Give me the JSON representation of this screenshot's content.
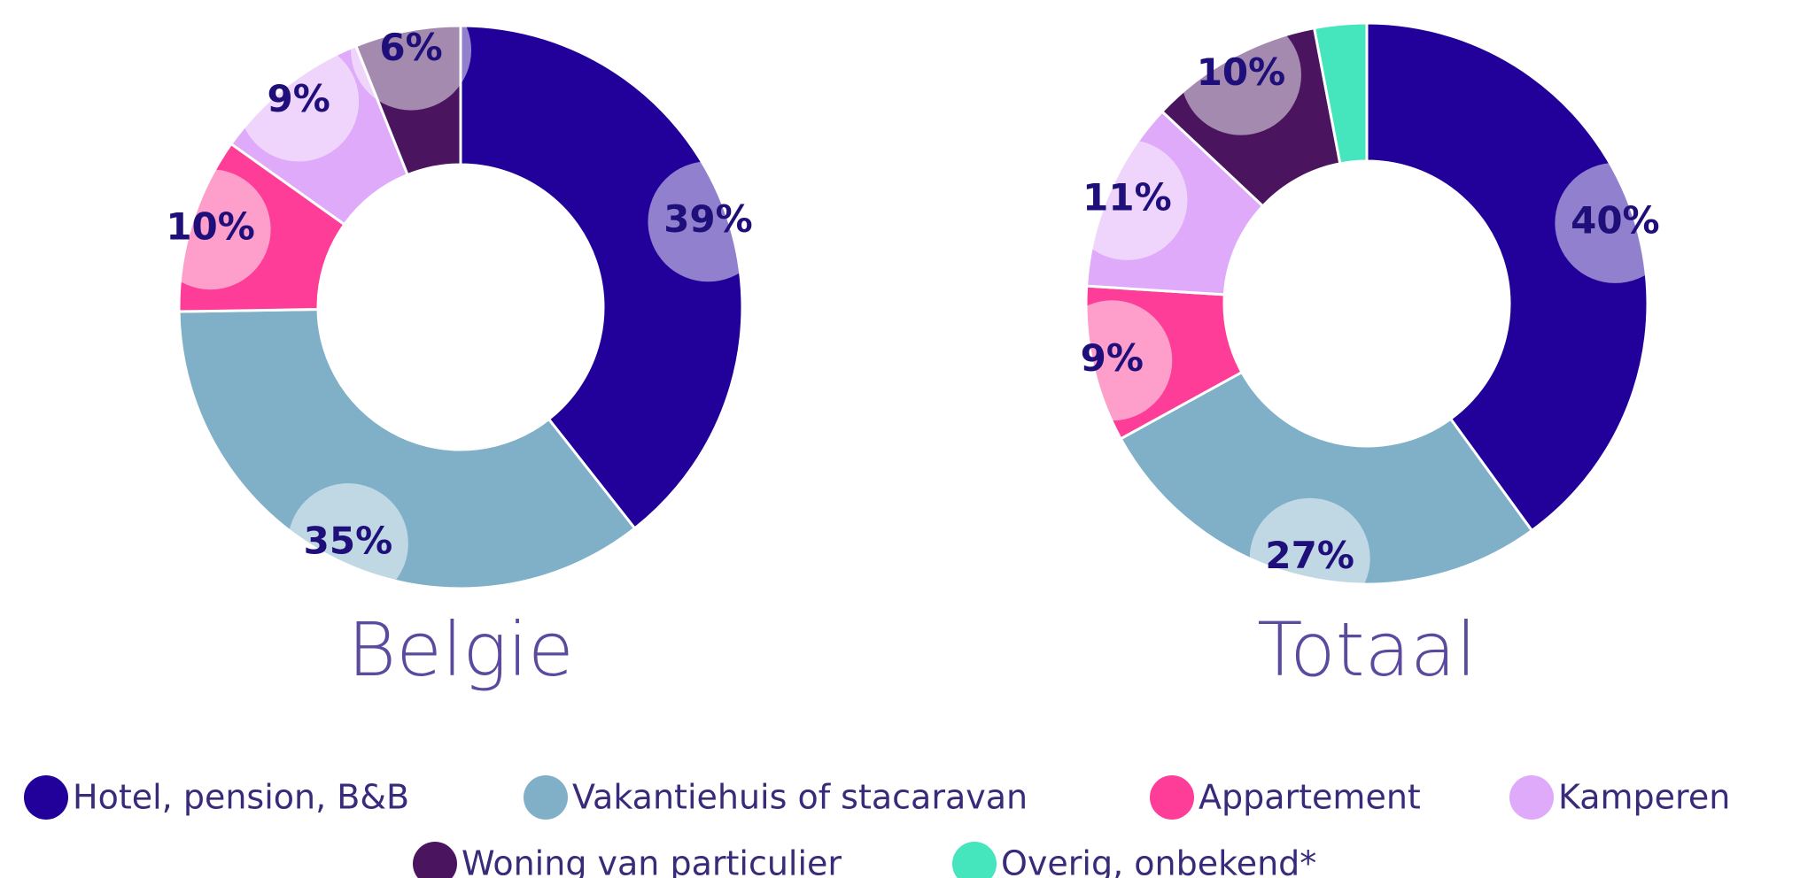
{
  "legend": [
    {
      "name": "Hotel, pension, B&B",
      "color": "#22009a"
    },
    {
      "name": "Vakantiehuis of stacaravan",
      "color": "#7fb0c8"
    },
    {
      "name": "Appartement",
      "color": "#fd3d97"
    },
    {
      "name": "Kamperen",
      "color": "#deaaf9"
    },
    {
      "name": "Woning van particulier",
      "color": "#4a145f"
    },
    {
      "name": "Overig, onbekend*",
      "color": "#45e5bd"
    }
  ],
  "chart_data": [
    {
      "type": "donut",
      "title": "Belgie",
      "values": [
        39,
        35,
        10,
        9,
        6
      ],
      "value_labels": [
        "39%",
        "35%",
        "10%",
        "9%",
        "6%"
      ]
    },
    {
      "type": "donut",
      "title": "Totaal",
      "values": [
        40,
        27,
        9,
        11,
        10,
        3
      ],
      "value_labels": [
        "40%",
        "27%",
        "9%",
        "11%",
        "10%",
        null
      ]
    }
  ]
}
